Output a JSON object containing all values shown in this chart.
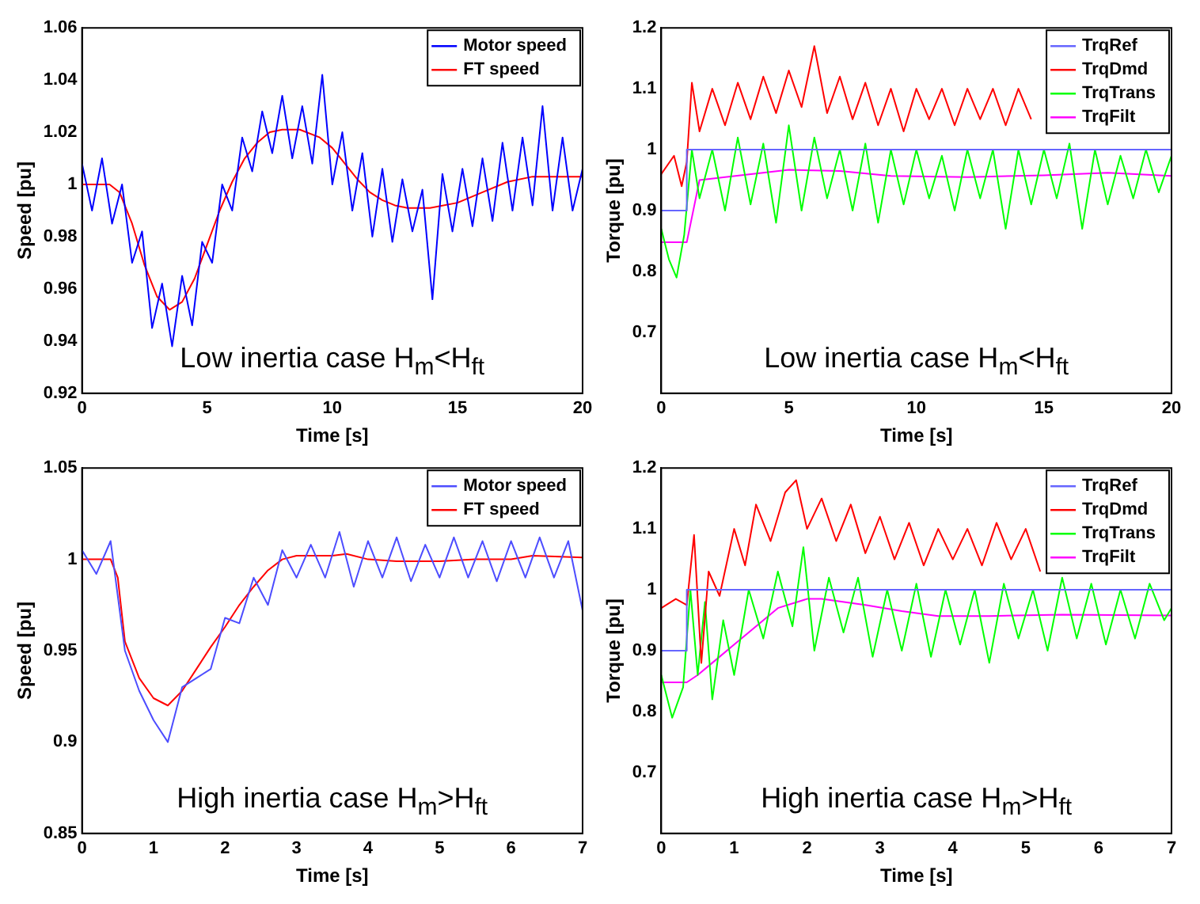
{
  "chart_data": [
    {
      "type": "line",
      "xlabel": "Time [s]",
      "ylabel": "Speed [pu]",
      "xlim": [
        0,
        20
      ],
      "ylim": [
        0.92,
        1.06
      ],
      "xticks": [
        0,
        5,
        10,
        15,
        20
      ],
      "yticks": [
        0.92,
        0.94,
        0.96,
        0.98,
        1,
        1.02,
        1.04,
        1.06
      ],
      "grid": false,
      "legend": "top right",
      "marker": "none",
      "annotations": [
        "Low inertia case H$_{m}$<H$_{ft}$"
      ],
      "series": [
        {
          "name": "Motor speed",
          "color": "#0000ff",
          "x": [
            0,
            0.4,
            0.8,
            1.2,
            1.6,
            2,
            2.4,
            2.8,
            3.2,
            3.6,
            4,
            4.4,
            4.8,
            5.2,
            5.6,
            6,
            6.4,
            6.8,
            7.2,
            7.6,
            8,
            8.4,
            8.8,
            9.2,
            9.6,
            10,
            10.4,
            10.8,
            11.2,
            11.6,
            12,
            12.4,
            12.8,
            13.2,
            13.6,
            14,
            14.4,
            14.8,
            15.2,
            15.6,
            16,
            16.4,
            16.8,
            17.2,
            17.6,
            18,
            18.4,
            18.8,
            19.2,
            19.6,
            20
          ],
          "values": [
            1.008,
            0.99,
            1.01,
            0.985,
            1.0,
            0.97,
            0.982,
            0.945,
            0.962,
            0.938,
            0.965,
            0.946,
            0.978,
            0.97,
            1.0,
            0.99,
            1.018,
            1.005,
            1.028,
            1.012,
            1.034,
            1.01,
            1.03,
            1.008,
            1.042,
            1.0,
            1.02,
            0.99,
            1.012,
            0.98,
            1.006,
            0.978,
            1.002,
            0.982,
            0.998,
            0.956,
            1.004,
            0.982,
            1.006,
            0.984,
            1.01,
            0.986,
            1.016,
            0.99,
            1.018,
            0.992,
            1.03,
            0.99,
            1.018,
            0.99,
            1.006
          ]
        },
        {
          "name": "FT speed",
          "color": "#ff0000",
          "x": [
            0,
            1.1,
            1.5,
            2,
            2.5,
            3,
            3.5,
            4,
            4.5,
            5,
            5.5,
            6,
            6.5,
            7,
            7.5,
            8,
            8.7,
            9.5,
            10,
            10.5,
            11,
            11.5,
            12,
            12.5,
            13,
            13.9,
            15,
            16,
            17,
            18,
            19,
            20
          ],
          "values": [
            1,
            1,
            0.997,
            0.985,
            0.969,
            0.957,
            0.952,
            0.955,
            0.964,
            0.977,
            0.99,
            1.001,
            1.01,
            1.016,
            1.02,
            1.021,
            1.021,
            1.018,
            1.014,
            1.008,
            1.002,
            0.997,
            0.994,
            0.992,
            0.991,
            0.991,
            0.993,
            0.997,
            1.001,
            1.003,
            1.003,
            1.003
          ]
        }
      ]
    },
    {
      "type": "line",
      "xlabel": "Time [s]",
      "ylabel": "Torque [pu]",
      "xlim": [
        0,
        20
      ],
      "ylim": [
        0.6,
        1.2
      ],
      "xticks": [
        0,
        5,
        10,
        15,
        20
      ],
      "yticks": [
        0.7,
        0.8,
        0.9,
        1,
        1.1,
        1.2
      ],
      "grid": false,
      "legend": "top right",
      "marker": "none",
      "annotations": [
        "Low inertia case H$_{m}$<H$_{ft}$"
      ],
      "series": [
        {
          "name": "TrqRef",
          "color": "#6666ff",
          "x": [
            0,
            1,
            1,
            20
          ],
          "values": [
            0.9,
            0.9,
            1,
            1
          ]
        },
        {
          "name": "TrqDmd",
          "color": "#ff0000",
          "x": [
            0,
            0.5,
            0.8,
            1,
            1.2,
            1.5,
            2,
            2.5,
            3,
            3.5,
            4,
            4.5,
            5,
            5.5,
            6,
            6.5,
            7,
            7.5,
            8,
            8.5,
            9,
            9.5,
            10,
            10.5,
            11,
            11.5,
            12,
            12.5,
            13,
            13.5,
            14,
            14.5
          ],
          "values": [
            0.96,
            0.99,
            0.94,
            0.98,
            1.11,
            1.03,
            1.1,
            1.04,
            1.11,
            1.05,
            1.12,
            1.06,
            1.13,
            1.07,
            1.17,
            1.06,
            1.12,
            1.05,
            1.11,
            1.04,
            1.1,
            1.03,
            1.1,
            1.05,
            1.1,
            1.04,
            1.1,
            1.05,
            1.1,
            1.04,
            1.1,
            1.05
          ]
        },
        {
          "name": "TrqTrans",
          "color": "#00ff00",
          "x": [
            0,
            0.3,
            0.6,
            0.9,
            1.2,
            1.5,
            2,
            2.5,
            3,
            3.5,
            4,
            4.5,
            5,
            5.5,
            6,
            6.5,
            7,
            7.5,
            8,
            8.5,
            9,
            9.5,
            10,
            10.5,
            11,
            11.5,
            12,
            12.5,
            13,
            13.5,
            14,
            14.5,
            15,
            15.5,
            16,
            16.5,
            17,
            17.5,
            18,
            18.5,
            19,
            19.5,
            20
          ],
          "values": [
            0.87,
            0.82,
            0.79,
            0.86,
            1.0,
            0.92,
            1.0,
            0.9,
            1.02,
            0.91,
            1.01,
            0.88,
            1.04,
            0.9,
            1.02,
            0.92,
            1.0,
            0.9,
            1.01,
            0.88,
            1.0,
            0.91,
            1.0,
            0.92,
            0.99,
            0.9,
            1.0,
            0.92,
            1.0,
            0.87,
            1.0,
            0.91,
            1.0,
            0.92,
            1.01,
            0.87,
            1.0,
            0.91,
            0.99,
            0.92,
            1.0,
            0.93,
            0.99
          ]
        },
        {
          "name": "TrqFilt",
          "color": "#ff00ff",
          "x": [
            0,
            1,
            1.5,
            2.5,
            5,
            7,
            9,
            12,
            15,
            17.5,
            20
          ],
          "values": [
            0.848,
            0.848,
            0.95,
            0.955,
            0.967,
            0.965,
            0.957,
            0.955,
            0.958,
            0.962,
            0.957
          ]
        }
      ]
    },
    {
      "type": "line",
      "xlabel": "Time [s]",
      "ylabel": "Speed [pu]",
      "xlim": [
        0,
        7
      ],
      "ylim": [
        0.85,
        1.05
      ],
      "xticks": [
        0,
        1,
        2,
        3,
        4,
        5,
        6,
        7
      ],
      "yticks": [
        0.85,
        0.9,
        0.95,
        1,
        1.05
      ],
      "grid": false,
      "legend": "top right",
      "marker": "none",
      "annotations": [
        "High inertia case H$_{m}$>H$_{ft}$"
      ],
      "series": [
        {
          "name": "Motor speed",
          "color": "#4d4dff",
          "x": [
            0,
            0.2,
            0.4,
            0.6,
            0.8,
            1,
            1.2,
            1.4,
            1.6,
            1.8,
            2,
            2.2,
            2.4,
            2.6,
            2.8,
            3,
            3.2,
            3.4,
            3.6,
            3.8,
            4,
            4.2,
            4.4,
            4.6,
            4.8,
            5,
            5.2,
            5.4,
            5.6,
            5.8,
            6,
            6.2,
            6.4,
            6.6,
            6.8,
            7
          ],
          "values": [
            1.005,
            0.992,
            1.01,
            0.95,
            0.928,
            0.912,
            0.9,
            0.93,
            0.935,
            0.94,
            0.968,
            0.965,
            0.99,
            0.975,
            1.005,
            0.99,
            1.008,
            0.99,
            1.015,
            0.985,
            1.01,
            0.99,
            1.012,
            0.988,
            1.008,
            0.99,
            1.012,
            0.99,
            1.01,
            0.988,
            1.01,
            0.99,
            1.012,
            0.99,
            1.01,
            0.972
          ]
        },
        {
          "name": "FT speed",
          "color": "#ff0000",
          "x": [
            0,
            0.4,
            0.5,
            0.6,
            0.8,
            1,
            1.2,
            1.4,
            1.6,
            1.8,
            2,
            2.2,
            2.4,
            2.6,
            2.8,
            3,
            3.5,
            3.7,
            4,
            4.4,
            5,
            5.5,
            6,
            6.3,
            7
          ],
          "values": [
            1,
            1,
            0.99,
            0.955,
            0.935,
            0.924,
            0.92,
            0.928,
            0.94,
            0.952,
            0.963,
            0.975,
            0.985,
            0.994,
            1,
            1.002,
            1.002,
            1.003,
            1,
            0.999,
            0.999,
            1,
            1,
            1.002,
            1.001
          ]
        }
      ]
    },
    {
      "type": "line",
      "xlabel": "Time [s]",
      "ylabel": "Torque [pu]",
      "xlim": [
        0,
        7
      ],
      "ylim": [
        0.6,
        1.2
      ],
      "xticks": [
        0,
        1,
        2,
        3,
        4,
        5,
        6,
        7
      ],
      "yticks": [
        0.7,
        0.8,
        0.9,
        1,
        1.1,
        1.2
      ],
      "grid": false,
      "legend": "top right",
      "marker": "none",
      "annotations": [
        "High inertia case H$_{m}$>H$_{ft}$"
      ],
      "series": [
        {
          "name": "TrqRef",
          "color": "#6666ff",
          "x": [
            0,
            0.35,
            0.35,
            7
          ],
          "values": [
            0.9,
            0.9,
            1,
            1
          ]
        },
        {
          "name": "TrqDmd",
          "color": "#ff0000",
          "x": [
            0,
            0.2,
            0.35,
            0.45,
            0.55,
            0.65,
            0.8,
            1,
            1.15,
            1.3,
            1.5,
            1.7,
            1.85,
            2,
            2.2,
            2.4,
            2.6,
            2.8,
            3,
            3.2,
            3.4,
            3.6,
            3.8,
            4,
            4.2,
            4.4,
            4.6,
            4.8,
            5,
            5.2
          ],
          "values": [
            0.97,
            0.985,
            0.975,
            1.09,
            0.88,
            1.03,
            0.99,
            1.1,
            1.04,
            1.14,
            1.08,
            1.16,
            1.18,
            1.1,
            1.15,
            1.08,
            1.14,
            1.06,
            1.12,
            1.05,
            1.11,
            1.04,
            1.1,
            1.05,
            1.1,
            1.04,
            1.11,
            1.05,
            1.1,
            1.03
          ]
        },
        {
          "name": "TrqTrans",
          "color": "#00ff00",
          "x": [
            0,
            0.15,
            0.3,
            0.4,
            0.5,
            0.6,
            0.7,
            0.85,
            1,
            1.2,
            1.4,
            1.6,
            1.8,
            1.95,
            2.1,
            2.3,
            2.5,
            2.7,
            2.9,
            3.1,
            3.3,
            3.5,
            3.7,
            3.9,
            4.1,
            4.3,
            4.5,
            4.7,
            4.9,
            5.1,
            5.3,
            5.5,
            5.7,
            5.9,
            6.1,
            6.3,
            6.5,
            6.7,
            6.9,
            7
          ],
          "values": [
            0.86,
            0.79,
            0.84,
            1.0,
            0.86,
            0.98,
            0.82,
            0.95,
            0.86,
            1.0,
            0.92,
            1.03,
            0.94,
            1.07,
            0.9,
            1.02,
            0.93,
            1.02,
            0.89,
            1.0,
            0.9,
            1.01,
            0.89,
            1.0,
            0.91,
            1.0,
            0.88,
            1.01,
            0.92,
            1.0,
            0.9,
            1.02,
            0.92,
            1.01,
            0.91,
            1.0,
            0.92,
            1.01,
            0.95,
            0.97
          ]
        },
        {
          "name": "TrqFilt",
          "color": "#ff00ff",
          "x": [
            0,
            0.35,
            0.5,
            0.7,
            1,
            1.3,
            1.6,
            2,
            2.2,
            2.8,
            3.3,
            3.8,
            4.5,
            5.5,
            7
          ],
          "values": [
            0.848,
            0.848,
            0.86,
            0.88,
            0.91,
            0.94,
            0.97,
            0.985,
            0.985,
            0.975,
            0.965,
            0.957,
            0.957,
            0.959,
            0.958
          ]
        }
      ]
    }
  ]
}
